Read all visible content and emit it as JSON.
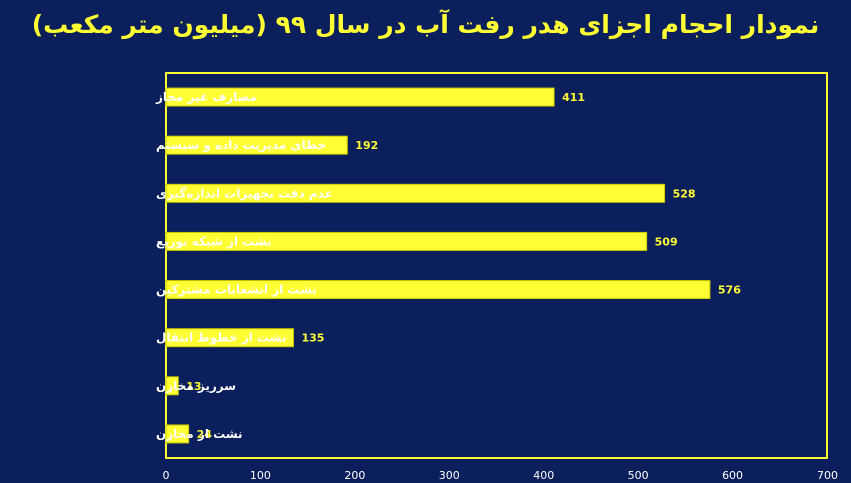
{
  "chart_data": {
    "type": "bar",
    "orientation": "horizontal",
    "title": "نمودار احجام اجزای هدر رفت آب در سال ۹۹ (میلیون متر مکعب)",
    "categories": [
      "مصارف غیر مجاز",
      "خطای مدیریت داده و سیستم",
      "عدم دقت تجهیزات اندازه‌گیری",
      "نشت از شبکه توزیع",
      "نشت از انشعابات مشترکین",
      "نشت از خطوط انتقال",
      "سرریز مخازن",
      "نشت از مخازن"
    ],
    "values": [
      411,
      192,
      528,
      509,
      576,
      135,
      13,
      24
    ],
    "xlim": [
      0,
      700
    ],
    "xticks": [
      0,
      100,
      200,
      300,
      400,
      500,
      600,
      700
    ],
    "grid": false,
    "colors": {
      "background": "#0b1f5c",
      "bar": "#ffff33",
      "bar_border": "#c8c800",
      "frame": "#ffff33",
      "title": "#ffff33",
      "value_label": "#ffff33",
      "category_label": "#ffffff",
      "tick_label": "#ffffff"
    }
  }
}
